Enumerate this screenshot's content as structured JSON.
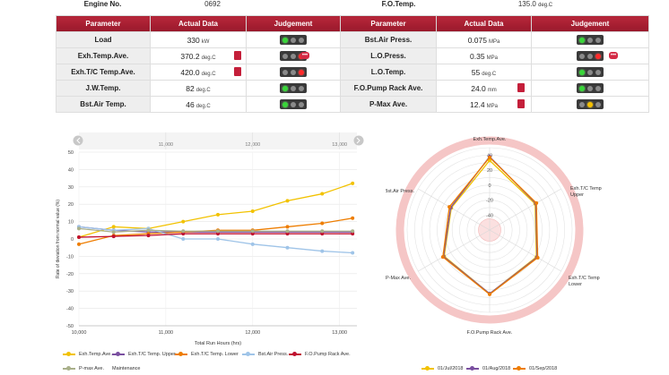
{
  "header": {
    "engine_no_label": "Engine No.",
    "engine_no_value": "0692",
    "fo_temp_label": "F.O.Temp.",
    "fo_temp_value": "135.0",
    "fo_temp_unit": "deg.C"
  },
  "table": {
    "headers": [
      "Parameter",
      "Actual Data",
      "Judgement"
    ],
    "left_rows": [
      {
        "name": "Load",
        "value": "330",
        "unit": "kW",
        "alarm": false,
        "bubble": false,
        "lights": [
          "g",
          "off",
          "off"
        ]
      },
      {
        "name": "Exh.Temp.Ave.",
        "value": "370.2",
        "unit": "deg.C",
        "alarm": true,
        "bubble": true,
        "lights": [
          "off",
          "off",
          "r"
        ]
      },
      {
        "name": "Exh.T/C Temp.Ave.",
        "value": "420.0",
        "unit": "deg.C",
        "alarm": true,
        "bubble": false,
        "lights": [
          "off",
          "off",
          "r"
        ]
      },
      {
        "name": "J.W.Temp.",
        "value": "82",
        "unit": "deg.C",
        "alarm": false,
        "bubble": false,
        "lights": [
          "g",
          "off",
          "off"
        ]
      },
      {
        "name": "Bst.Air Temp.",
        "value": "46",
        "unit": "deg.C",
        "alarm": false,
        "bubble": false,
        "lights": [
          "g",
          "off",
          "off"
        ]
      }
    ],
    "right_rows": [
      {
        "name": "Bst.Air Press.",
        "value": "0.075",
        "unit": "MPa",
        "alarm": false,
        "bubble": false,
        "lights": [
          "g",
          "off",
          "off"
        ]
      },
      {
        "name": "L.O.Press.",
        "value": "0.35",
        "unit": "MPa",
        "alarm": false,
        "bubble": true,
        "lights": [
          "off",
          "off",
          "r"
        ]
      },
      {
        "name": "L.O.Temp.",
        "value": "55",
        "unit": "deg.C",
        "alarm": false,
        "bubble": false,
        "lights": [
          "g",
          "off",
          "off"
        ]
      },
      {
        "name": "F.O.Pump Rack Ave.",
        "value": "24.0",
        "unit": "mm",
        "alarm": true,
        "bubble": false,
        "lights": [
          "g",
          "off",
          "off"
        ]
      },
      {
        "name": "P-Max Ave.",
        "value": "12.4",
        "unit": "MPa",
        "alarm": true,
        "bubble": false,
        "lights": [
          "off",
          "y",
          "off"
        ]
      }
    ]
  },
  "line_chart": {
    "ylabel": "Rate of deviation from normal value (%)",
    "xlabel": "Total Run Hours (hrs)",
    "top_ticks": [
      "11,000",
      "12,000",
      "13,000"
    ],
    "legend": [
      "Exh.Temp.Ave.",
      "Exh.T/C Temp. Upper",
      "Exh.T/C Temp. Lower",
      "Bst.Air Press.",
      "F.O.Pump Rack Ave.",
      "P-max Ave.",
      "Maintenance"
    ]
  },
  "radar_chart": {
    "axes": [
      "Exh.Temp.Ave.",
      "Exh.T/C Temp Upper",
      "Exh.T/C Temp Lower",
      "F.O.Pump Rack Ave.",
      "P-Max Ave.",
      "Bst.Air Press."
    ],
    "ring_labels": [
      "40",
      "20",
      "0",
      "-20",
      "-40"
    ],
    "legend": [
      "01/Jul/2018",
      "01/Aug/2018",
      "01/Sep/2018"
    ]
  },
  "chart_data": [
    {
      "type": "line",
      "xlabel": "Total Run Hours (hrs)",
      "ylabel": "Rate of deviation from normal value (%)",
      "xlim": [
        10000,
        13200
      ],
      "ylim": [
        -50,
        50
      ],
      "xticks": [
        "10,000",
        "11,000",
        "12,000",
        "13,000"
      ],
      "yticks": [
        "50",
        "40",
        "30",
        "20",
        "10",
        "0",
        "-10",
        "-20",
        "-30",
        "-40",
        "-50"
      ],
      "series": [
        {
          "name": "Exh.Temp.Ave.",
          "color": "#f2c200",
          "x": [
            10000,
            10400,
            10800,
            11200,
            11600,
            12000,
            12400,
            12800,
            13150
          ],
          "y": [
            1,
            7,
            6,
            10,
            14,
            16,
            22,
            26,
            32
          ]
        },
        {
          "name": "Exh.T/C Temp. Upper",
          "color": "#7a4fa0",
          "x": [
            10000,
            10400,
            10800,
            11200,
            11600,
            12000,
            12400,
            12800,
            13150
          ],
          "y": [
            7,
            5,
            4,
            4,
            4,
            4,
            4,
            4,
            4
          ]
        },
        {
          "name": "Exh.T/C Temp. Lower",
          "color": "#ee7d00",
          "x": [
            10000,
            10400,
            10800,
            11200,
            11600,
            12000,
            12400,
            12800,
            13150
          ],
          "y": [
            -3,
            2,
            3,
            4,
            5,
            5,
            7,
            9,
            12
          ]
        },
        {
          "name": "Bst.Air Press.",
          "color": "#9fc4e8",
          "x": [
            10000,
            10400,
            10800,
            11200,
            11600,
            12000,
            12400,
            12800,
            13150
          ],
          "y": [
            7,
            5,
            6,
            0,
            0,
            -3,
            -5,
            -7,
            -8
          ]
        },
        {
          "name": "F.O.Pump Rack Ave.",
          "color": "#c01030",
          "x": [
            10000,
            10400,
            10800,
            11200,
            11600,
            12000,
            12400,
            12800,
            13150
          ],
          "y": [
            1,
            1.5,
            2,
            3,
            3,
            3,
            3,
            3,
            3
          ]
        },
        {
          "name": "P-max Ave.",
          "color": "#a9b08a",
          "x": [
            10000,
            10400,
            10800,
            11200,
            11600,
            12000,
            12400,
            12800,
            13150
          ],
          "y": [
            6,
            4,
            5,
            4.5,
            4.5,
            4.5,
            4.5,
            4.5,
            4.5
          ]
        }
      ]
    },
    {
      "type": "radar",
      "axes": [
        "Exh.Temp.Ave.",
        "Exh.T/C Temp Upper",
        "Exh.T/C Temp Lower",
        "F.O.Pump Rack Ave.",
        "P-Max Ave.",
        "Bst.Air Press."
      ],
      "rlim": [
        -60,
        50
      ],
      "rticks": [
        40,
        20,
        0,
        -20,
        -40
      ],
      "series": [
        {
          "name": "01/Jul/2018",
          "color": "#f2c200",
          "values": [
            33,
            10,
            12,
            25,
            10,
            -1
          ]
        },
        {
          "name": "01/Aug/2018",
          "color": "#7a4fa0",
          "values": [
            38,
            11,
            13,
            25,
            11,
            0
          ]
        },
        {
          "name": "01/Sep/2018",
          "color": "#ee7d00",
          "values": [
            37,
            12,
            14,
            26,
            12,
            2
          ]
        }
      ]
    }
  ]
}
